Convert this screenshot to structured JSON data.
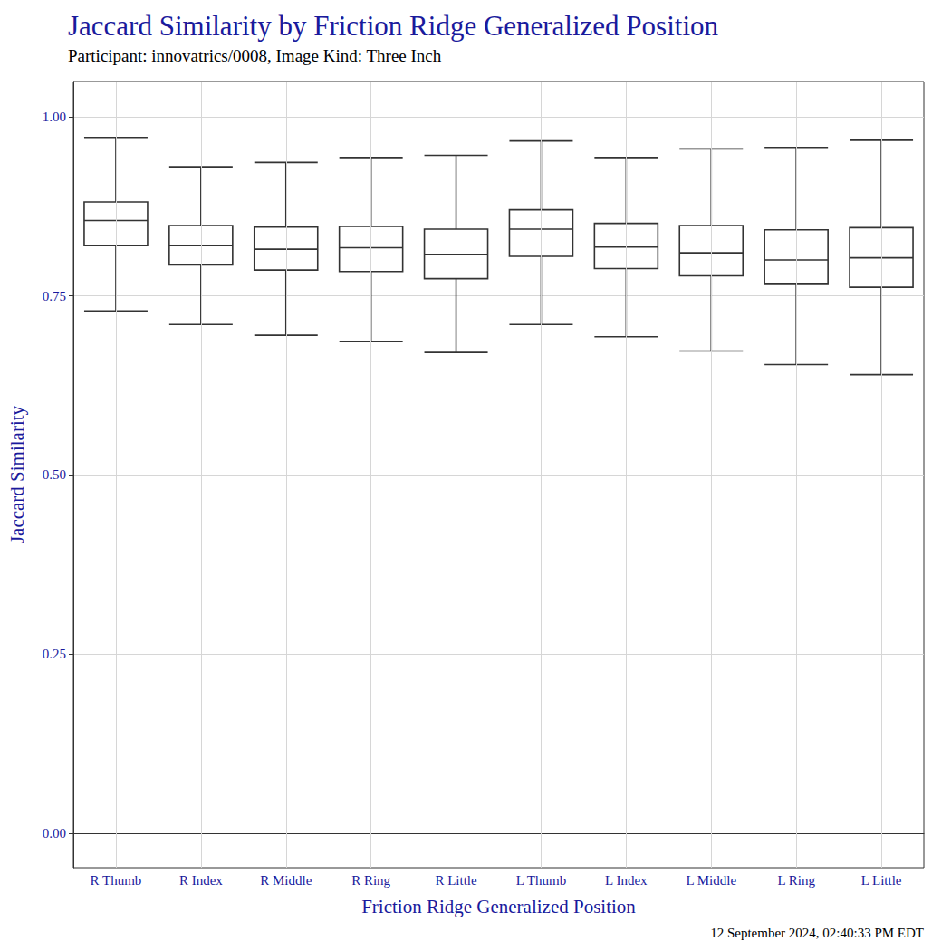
{
  "chart_data": {
    "type": "boxplot",
    "title": "Jaccard Similarity by Friction Ridge Generalized Position",
    "subtitle": "Participant: innovatrics/0008, Image Kind: Three Inch",
    "x_label": "Friction Ridge Generalized Position",
    "y_label": "Jaccard Similarity",
    "caption": "12 September 2024, 02:40:33 PM EDT",
    "categories": [
      "R Thumb",
      "R Index",
      "R Middle",
      "R Ring",
      "R Little",
      "L Thumb",
      "L Index",
      "L Middle",
      "L Ring",
      "L Little"
    ],
    "boxes": [
      [
        0.729,
        0.82,
        0.855,
        0.881,
        0.971
      ],
      [
        0.71,
        0.793,
        0.82,
        0.848,
        0.93
      ],
      [
        0.695,
        0.786,
        0.815,
        0.846,
        0.936
      ],
      [
        0.686,
        0.784,
        0.817,
        0.847,
        0.943
      ],
      [
        0.671,
        0.774,
        0.808,
        0.843,
        0.946
      ],
      [
        0.71,
        0.805,
        0.843,
        0.87,
        0.966
      ],
      [
        0.693,
        0.788,
        0.818,
        0.851,
        0.943
      ],
      [
        0.673,
        0.778,
        0.81,
        0.848,
        0.955
      ],
      [
        0.654,
        0.766,
        0.8,
        0.842,
        0.957
      ],
      [
        0.64,
        0.762,
        0.803,
        0.845,
        0.967
      ]
    ],
    "ylim": [
      -0.048,
      1.049
    ],
    "yticks": [
      {
        "value": 0,
        "label": "0.00"
      },
      {
        "value": 0.25,
        "label": "0.25"
      },
      {
        "value": 0.5,
        "label": "0.50"
      },
      {
        "value": 0.75,
        "label": "0.75"
      },
      {
        "value": 1,
        "label": "1.00"
      }
    ],
    "grid": true
  }
}
